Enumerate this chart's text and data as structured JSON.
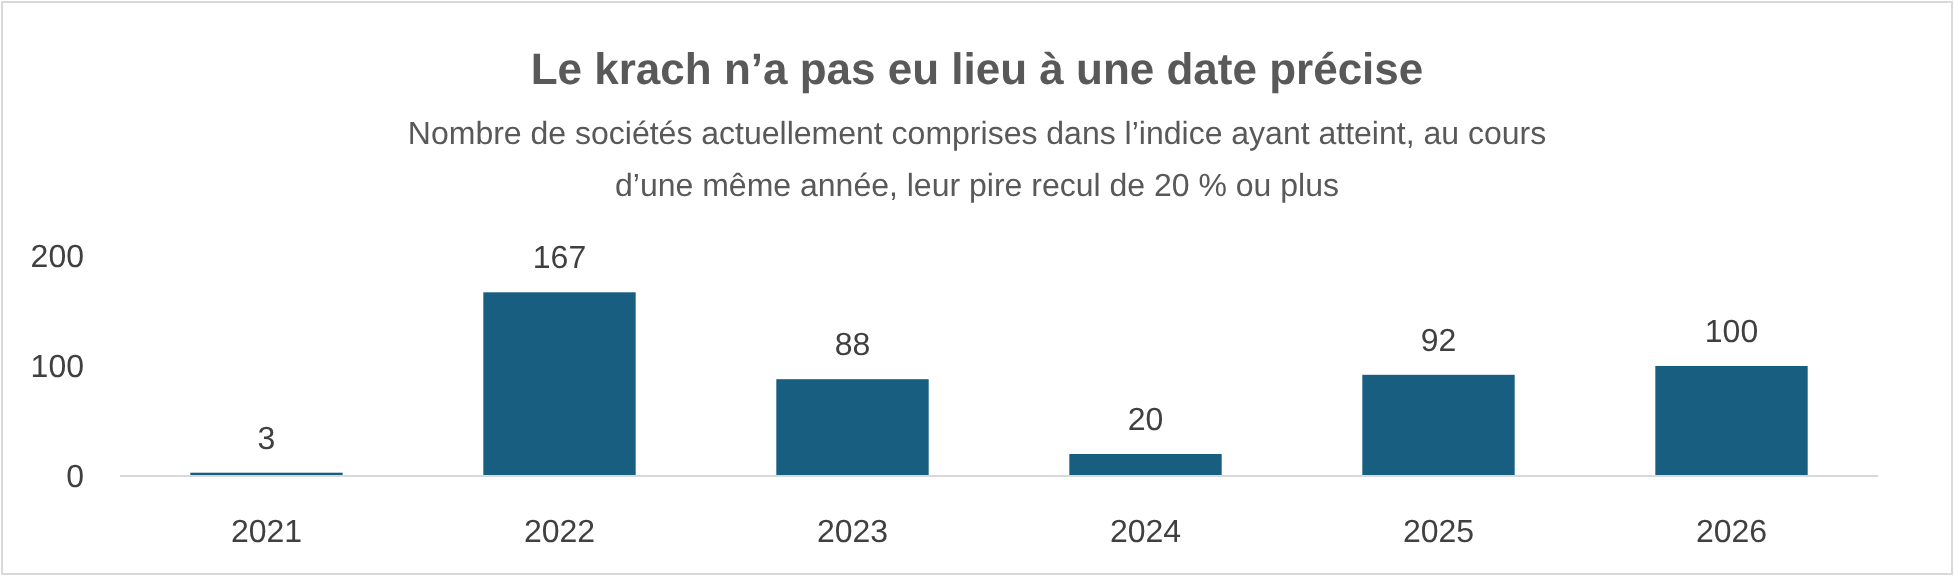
{
  "chart_data": {
    "type": "bar",
    "title": "Le krach n’a pas eu lieu à une date précise",
    "subtitle": "Nombre de sociétés actuellement comprises dans l’indice ayant atteint, au cours d’une même année, leur pire recul de 20 % ou plus",
    "categories": [
      "2021",
      "2022",
      "2023",
      "2024",
      "2025",
      "2026"
    ],
    "values": [
      3,
      167,
      88,
      20,
      92,
      100
    ],
    "color": "#175e80",
    "ylim": [
      0,
      200
    ],
    "yticks": [
      0,
      100,
      200
    ],
    "grid": false,
    "data_labels": true
  }
}
